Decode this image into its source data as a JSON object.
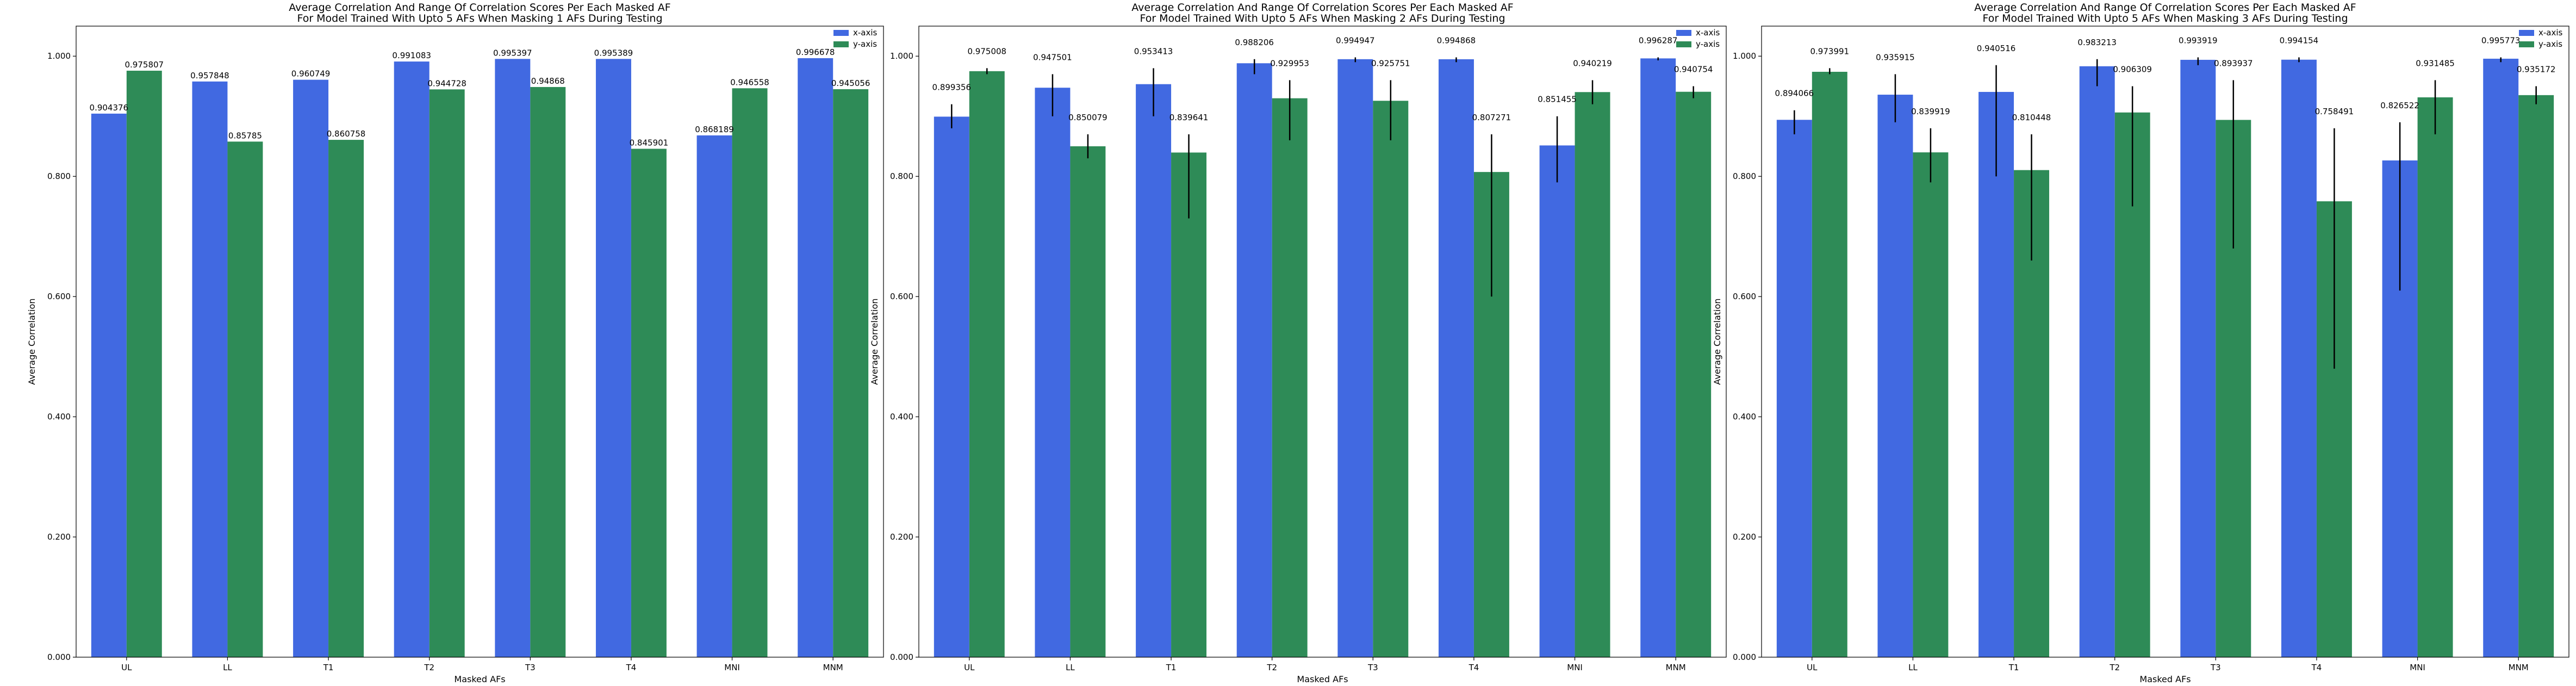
{
  "chart_data": [
    {
      "type": "bar",
      "title": [
        "Average Correlation And Range Of Correlation Scores Per Each Masked AF",
        "For Model Trained With Upto 5 AFs When Masking 1 AFs During Testing"
      ],
      "xlabel": "Masked AFs",
      "ylabel": "Average Correlation",
      "categories": [
        "UL",
        "LL",
        "T1",
        "T2",
        "T3",
        "T4",
        "MNI",
        "MNM"
      ],
      "ylim": [
        0.0,
        1.05
      ],
      "yticks": [
        "0.000",
        "0.200",
        "0.400",
        "0.600",
        "0.800",
        "1.000"
      ],
      "yticks_values": [
        0,
        0.2,
        0.4,
        0.6,
        0.8,
        1.0
      ],
      "legend_position": "top-right",
      "series": [
        {
          "name": "x-axis",
          "color": "#4169e1",
          "values": [
            0.904376,
            0.957848,
            0.960749,
            0.991083,
            0.995397,
            0.995389,
            0.868189,
            0.996678
          ],
          "labels": [
            "0.904376",
            "0.957848",
            "0.960749",
            "0.991083",
            "0.995397",
            "0.995389",
            "0.868189",
            "0.996678"
          ],
          "error_range": null
        },
        {
          "name": "y-axis",
          "color": "#2e8b57",
          "values": [
            0.975807,
            0.85785,
            0.860758,
            0.944728,
            0.94868,
            0.845901,
            0.946558,
            0.945056
          ],
          "labels": [
            "0.975807",
            "0.85785",
            "0.860758",
            "0.944728",
            "0.94868",
            "0.845901",
            "0.946558",
            "0.945056"
          ],
          "error_range": null
        }
      ]
    },
    {
      "type": "bar",
      "title": [
        "Average Correlation And Range Of Correlation Scores Per Each Masked AF",
        "For Model Trained With Upto 5 AFs When Masking 2 AFs During Testing"
      ],
      "xlabel": "Masked AFs",
      "ylabel": "Average Correlation",
      "categories": [
        "UL",
        "LL",
        "T1",
        "T2",
        "T3",
        "T4",
        "MNI",
        "MNM"
      ],
      "ylim": [
        0.0,
        1.05
      ],
      "yticks": [
        "0.000",
        "0.200",
        "0.400",
        "0.600",
        "0.800",
        "1.000"
      ],
      "yticks_values": [
        0,
        0.2,
        0.4,
        0.6,
        0.8,
        1.0
      ],
      "legend_position": "top-right",
      "series": [
        {
          "name": "x-axis",
          "color": "#4169e1",
          "values": [
            0.899356,
            0.947501,
            0.953413,
            0.988206,
            0.994947,
            0.994868,
            0.851455,
            0.996287
          ],
          "labels": [
            "0.899356",
            "0.947501",
            "0.953413",
            "0.988206",
            "0.994947",
            "0.994868",
            "0.851455",
            "0.996287"
          ],
          "error_range": [
            [
              0.88,
              0.92
            ],
            [
              0.9,
              0.97
            ],
            [
              0.9,
              0.98
            ],
            [
              0.97,
              0.995
            ],
            [
              0.99,
              0.998
            ],
            [
              0.99,
              0.998
            ],
            [
              0.79,
              0.9
            ],
            [
              0.993,
              0.998
            ]
          ]
        },
        {
          "name": "y-axis",
          "color": "#2e8b57",
          "values": [
            0.975008,
            0.850079,
            0.839641,
            0.929953,
            0.925751,
            0.807271,
            0.940219,
            0.940754
          ],
          "labels": [
            "0.975008",
            "0.850079",
            "0.839641",
            "0.929953",
            "0.925751",
            "0.807271",
            "0.940219",
            "0.940754"
          ],
          "error_range": [
            [
              0.97,
              0.98
            ],
            [
              0.83,
              0.87
            ],
            [
              0.73,
              0.87
            ],
            [
              0.86,
              0.96
            ],
            [
              0.86,
              0.96
            ],
            [
              0.6,
              0.87
            ],
            [
              0.92,
              0.96
            ],
            [
              0.93,
              0.95
            ]
          ]
        }
      ]
    },
    {
      "type": "bar",
      "title": [
        "Average Correlation And Range Of Correlation Scores Per Each Masked AF",
        "For Model Trained With Upto 5 AFs When Masking 3 AFs During Testing"
      ],
      "xlabel": "Masked AFs",
      "ylabel": "Average Correlation",
      "categories": [
        "UL",
        "LL",
        "T1",
        "T2",
        "T3",
        "T4",
        "MNI",
        "MNM"
      ],
      "ylim": [
        0.0,
        1.05
      ],
      "yticks": [
        "0.000",
        "0.200",
        "0.400",
        "0.600",
        "0.800",
        "1.000"
      ],
      "yticks_values": [
        0,
        0.2,
        0.4,
        0.6,
        0.8,
        1.0
      ],
      "legend_position": "top-right",
      "series": [
        {
          "name": "x-axis",
          "color": "#4169e1",
          "values": [
            0.894066,
            0.935915,
            0.940516,
            0.983213,
            0.993919,
            0.994154,
            0.826522,
            0.995773
          ],
          "labels": [
            "0.894066",
            "0.935915",
            "0.940516",
            "0.983213",
            "0.993919",
            "0.994154",
            "0.826522",
            "0.995773"
          ],
          "error_range": [
            [
              0.87,
              0.91
            ],
            [
              0.89,
              0.97
            ],
            [
              0.8,
              0.985
            ],
            [
              0.95,
              0.995
            ],
            [
              0.985,
              0.998
            ],
            [
              0.99,
              0.998
            ],
            [
              0.61,
              0.89
            ],
            [
              0.99,
              0.998
            ]
          ]
        },
        {
          "name": "y-axis",
          "color": "#2e8b57",
          "values": [
            0.973991,
            0.839919,
            0.810448,
            0.906309,
            0.893937,
            0.758491,
            0.931485,
            0.935172
          ],
          "labels": [
            "0.973991",
            "0.839919",
            "0.810448",
            "0.906309",
            "0.893937",
            "0.758491",
            "0.931485",
            "0.935172"
          ],
          "error_range": [
            [
              0.97,
              0.98
            ],
            [
              0.79,
              0.88
            ],
            [
              0.66,
              0.87
            ],
            [
              0.75,
              0.95
            ],
            [
              0.68,
              0.96
            ],
            [
              0.48,
              0.88
            ],
            [
              0.87,
              0.96
            ],
            [
              0.92,
              0.95
            ]
          ]
        }
      ]
    }
  ]
}
